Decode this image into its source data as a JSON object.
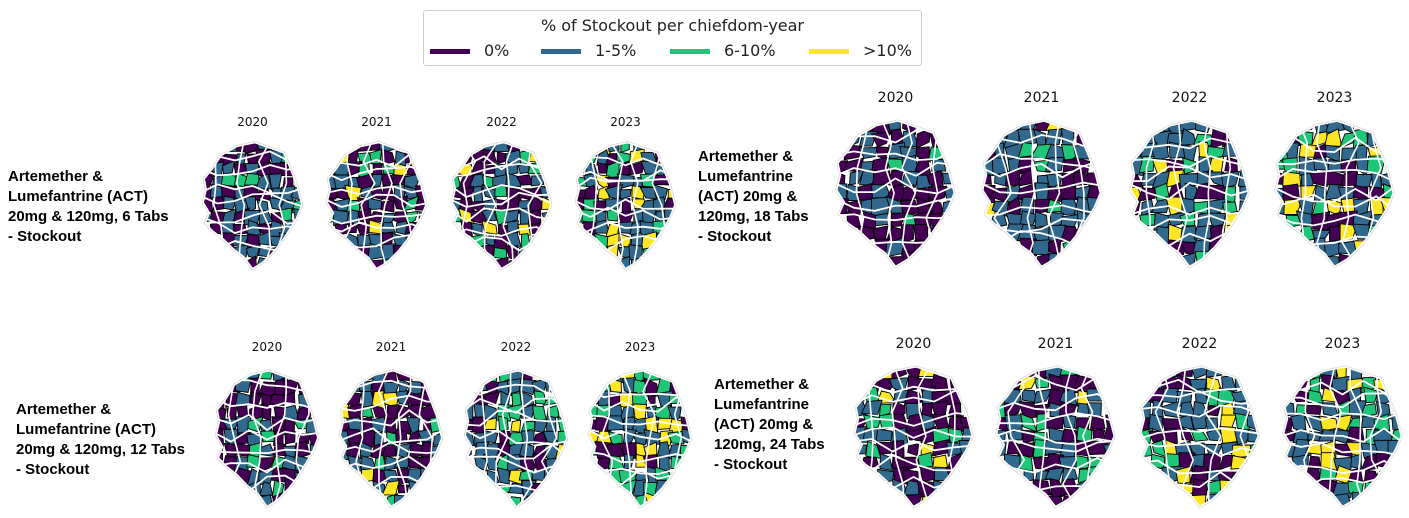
{
  "legend": {
    "title": "% of Stockout per chiefdom-year",
    "items": [
      {
        "label": "0%",
        "color": "#440154"
      },
      {
        "label": "1-5%",
        "color": "#31688e"
      },
      {
        "label": "6-10%",
        "color": "#1fc67a"
      },
      {
        "label": ">10%",
        "color": "#fde725"
      }
    ]
  },
  "panels": [
    {
      "label_lines": [
        "Artemether &",
        "Lumefantrine (ACT)",
        "20mg & 120mg, 6 Tabs",
        "- Stockout"
      ],
      "years": [
        "2020",
        "2021",
        "2022",
        "2023"
      ]
    },
    {
      "label_lines": [
        "Artemether &",
        "Lumefantrine",
        "(ACT) 20mg &",
        "120mg, 18 Tabs",
        "- Stockout"
      ],
      "years": [
        "2020",
        "2021",
        "2022",
        "2023"
      ]
    },
    {
      "label_lines": [
        "Artemether &",
        "Lumefantrine (ACT)",
        "20mg & 120mg, 12 Tabs",
        "- Stockout"
      ],
      "years": [
        "2020",
        "2021",
        "2022",
        "2023"
      ]
    },
    {
      "label_lines": [
        "Artemether &",
        "Lumefantrine",
        "(ACT) 20mg &",
        "120mg, 24 Tabs",
        "- Stockout"
      ],
      "years": [
        "2020",
        "2021",
        "2022",
        "2023"
      ]
    }
  ]
}
